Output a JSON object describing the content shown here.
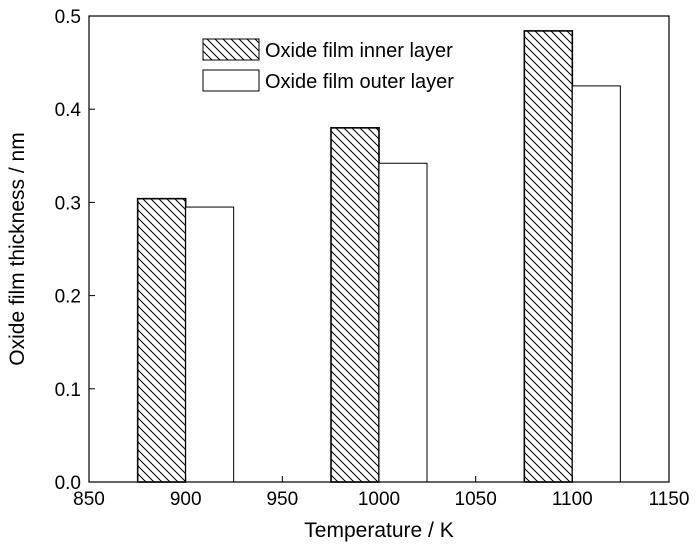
{
  "chart_data": {
    "type": "bar",
    "x": [
      900,
      1000,
      1100
    ],
    "series": [
      {
        "name": "Oxide film inner layer",
        "values": [
          0.304,
          0.38,
          0.484
        ],
        "pattern": "hatched"
      },
      {
        "name": "Oxide film outer layer",
        "values": [
          0.295,
          0.342,
          0.425
        ],
        "pattern": "empty"
      }
    ],
    "xlabel": "Temperature / K",
    "ylabel": "Oxide film thickness / nm",
    "xlim": [
      850,
      1150
    ],
    "ylim": [
      0.0,
      0.5
    ],
    "xticks": [
      "850",
      "900",
      "950",
      "1000",
      "1050",
      "1100",
      "1150"
    ],
    "yticks": [
      "0.0",
      "0.1",
      "0.2",
      "0.3",
      "0.4",
      "0.5"
    ],
    "grid": false,
    "legend_position": "top-center",
    "colors": {
      "stroke": "#000000",
      "fill": "#ffffff"
    }
  }
}
